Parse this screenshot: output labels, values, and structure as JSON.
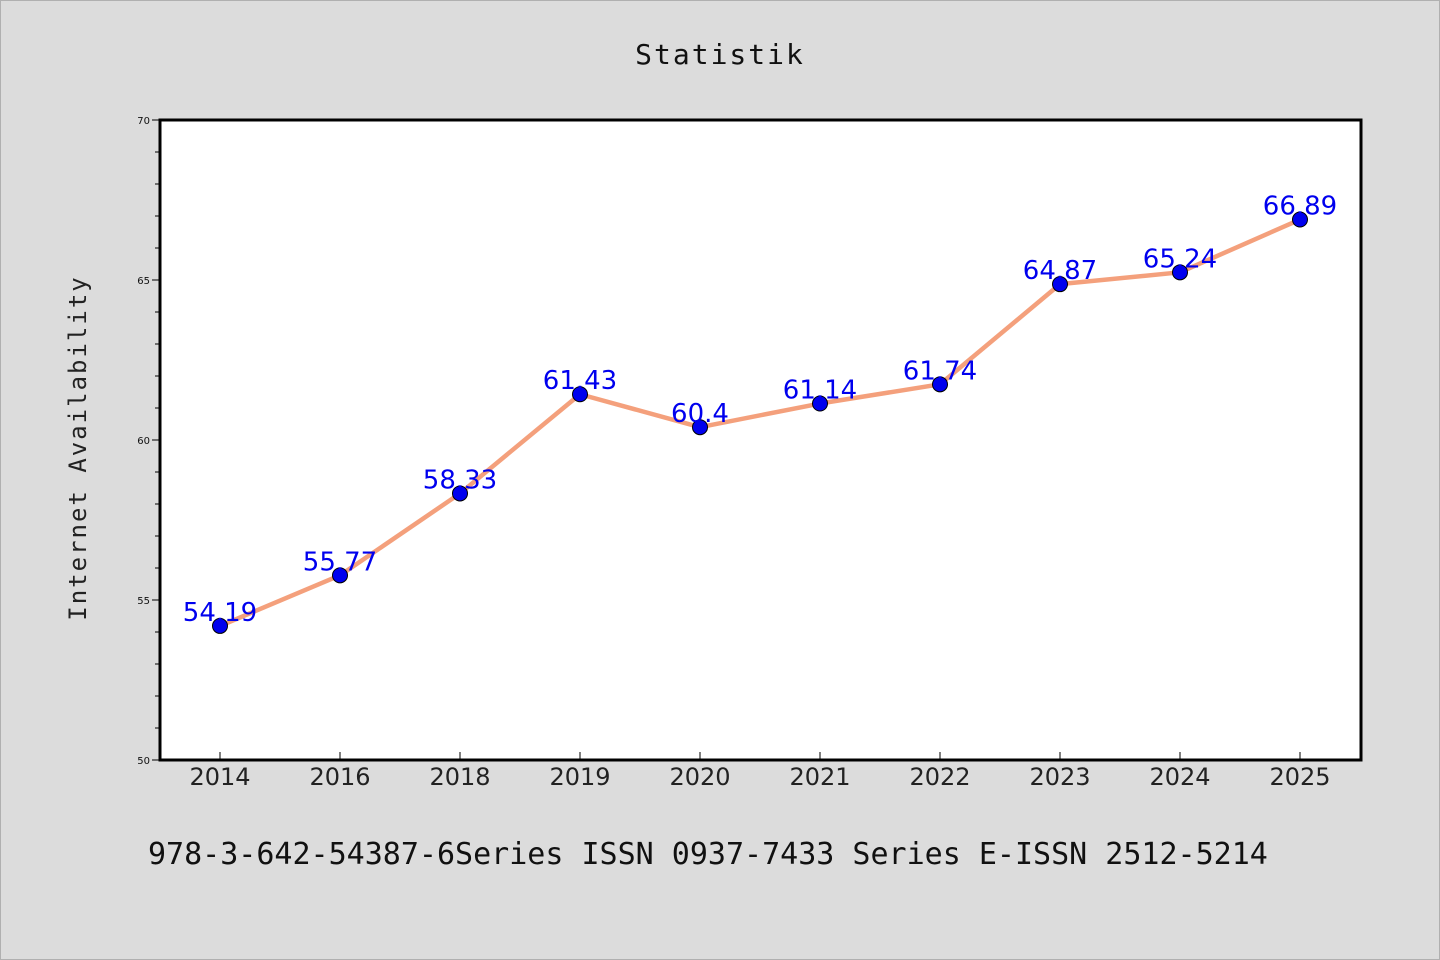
{
  "chart_data": {
    "type": "line",
    "title": "Statistik",
    "xlabel": "",
    "ylabel": "Internet Availability",
    "categories": [
      "2014",
      "2016",
      "2018",
      "2019",
      "2020",
      "2021",
      "2022",
      "2023",
      "2024",
      "2025"
    ],
    "values": [
      54.19,
      55.77,
      58.33,
      61.43,
      60.4,
      61.14,
      61.74,
      64.87,
      65.24,
      66.89
    ],
    "data_labels": [
      "54.19",
      "55.77",
      "58.33",
      "61.43",
      "60.4",
      "61.14",
      "61.74",
      "64.87",
      "65.24",
      "66.89"
    ],
    "ylim": [
      50,
      70
    ],
    "yticks": [
      50,
      55,
      60,
      65,
      70
    ],
    "grid": false,
    "legend": "none",
    "colors": {
      "line": "#f4a07c",
      "marker": "#0000ee",
      "label": "#0000ee",
      "plot_background": "#ffffff",
      "page_background": "#dcdcdc"
    }
  },
  "footer": {
    "text": "978-3-642-54387-6Series ISSN 0937-7433 Series E-ISSN 2512-5214"
  }
}
